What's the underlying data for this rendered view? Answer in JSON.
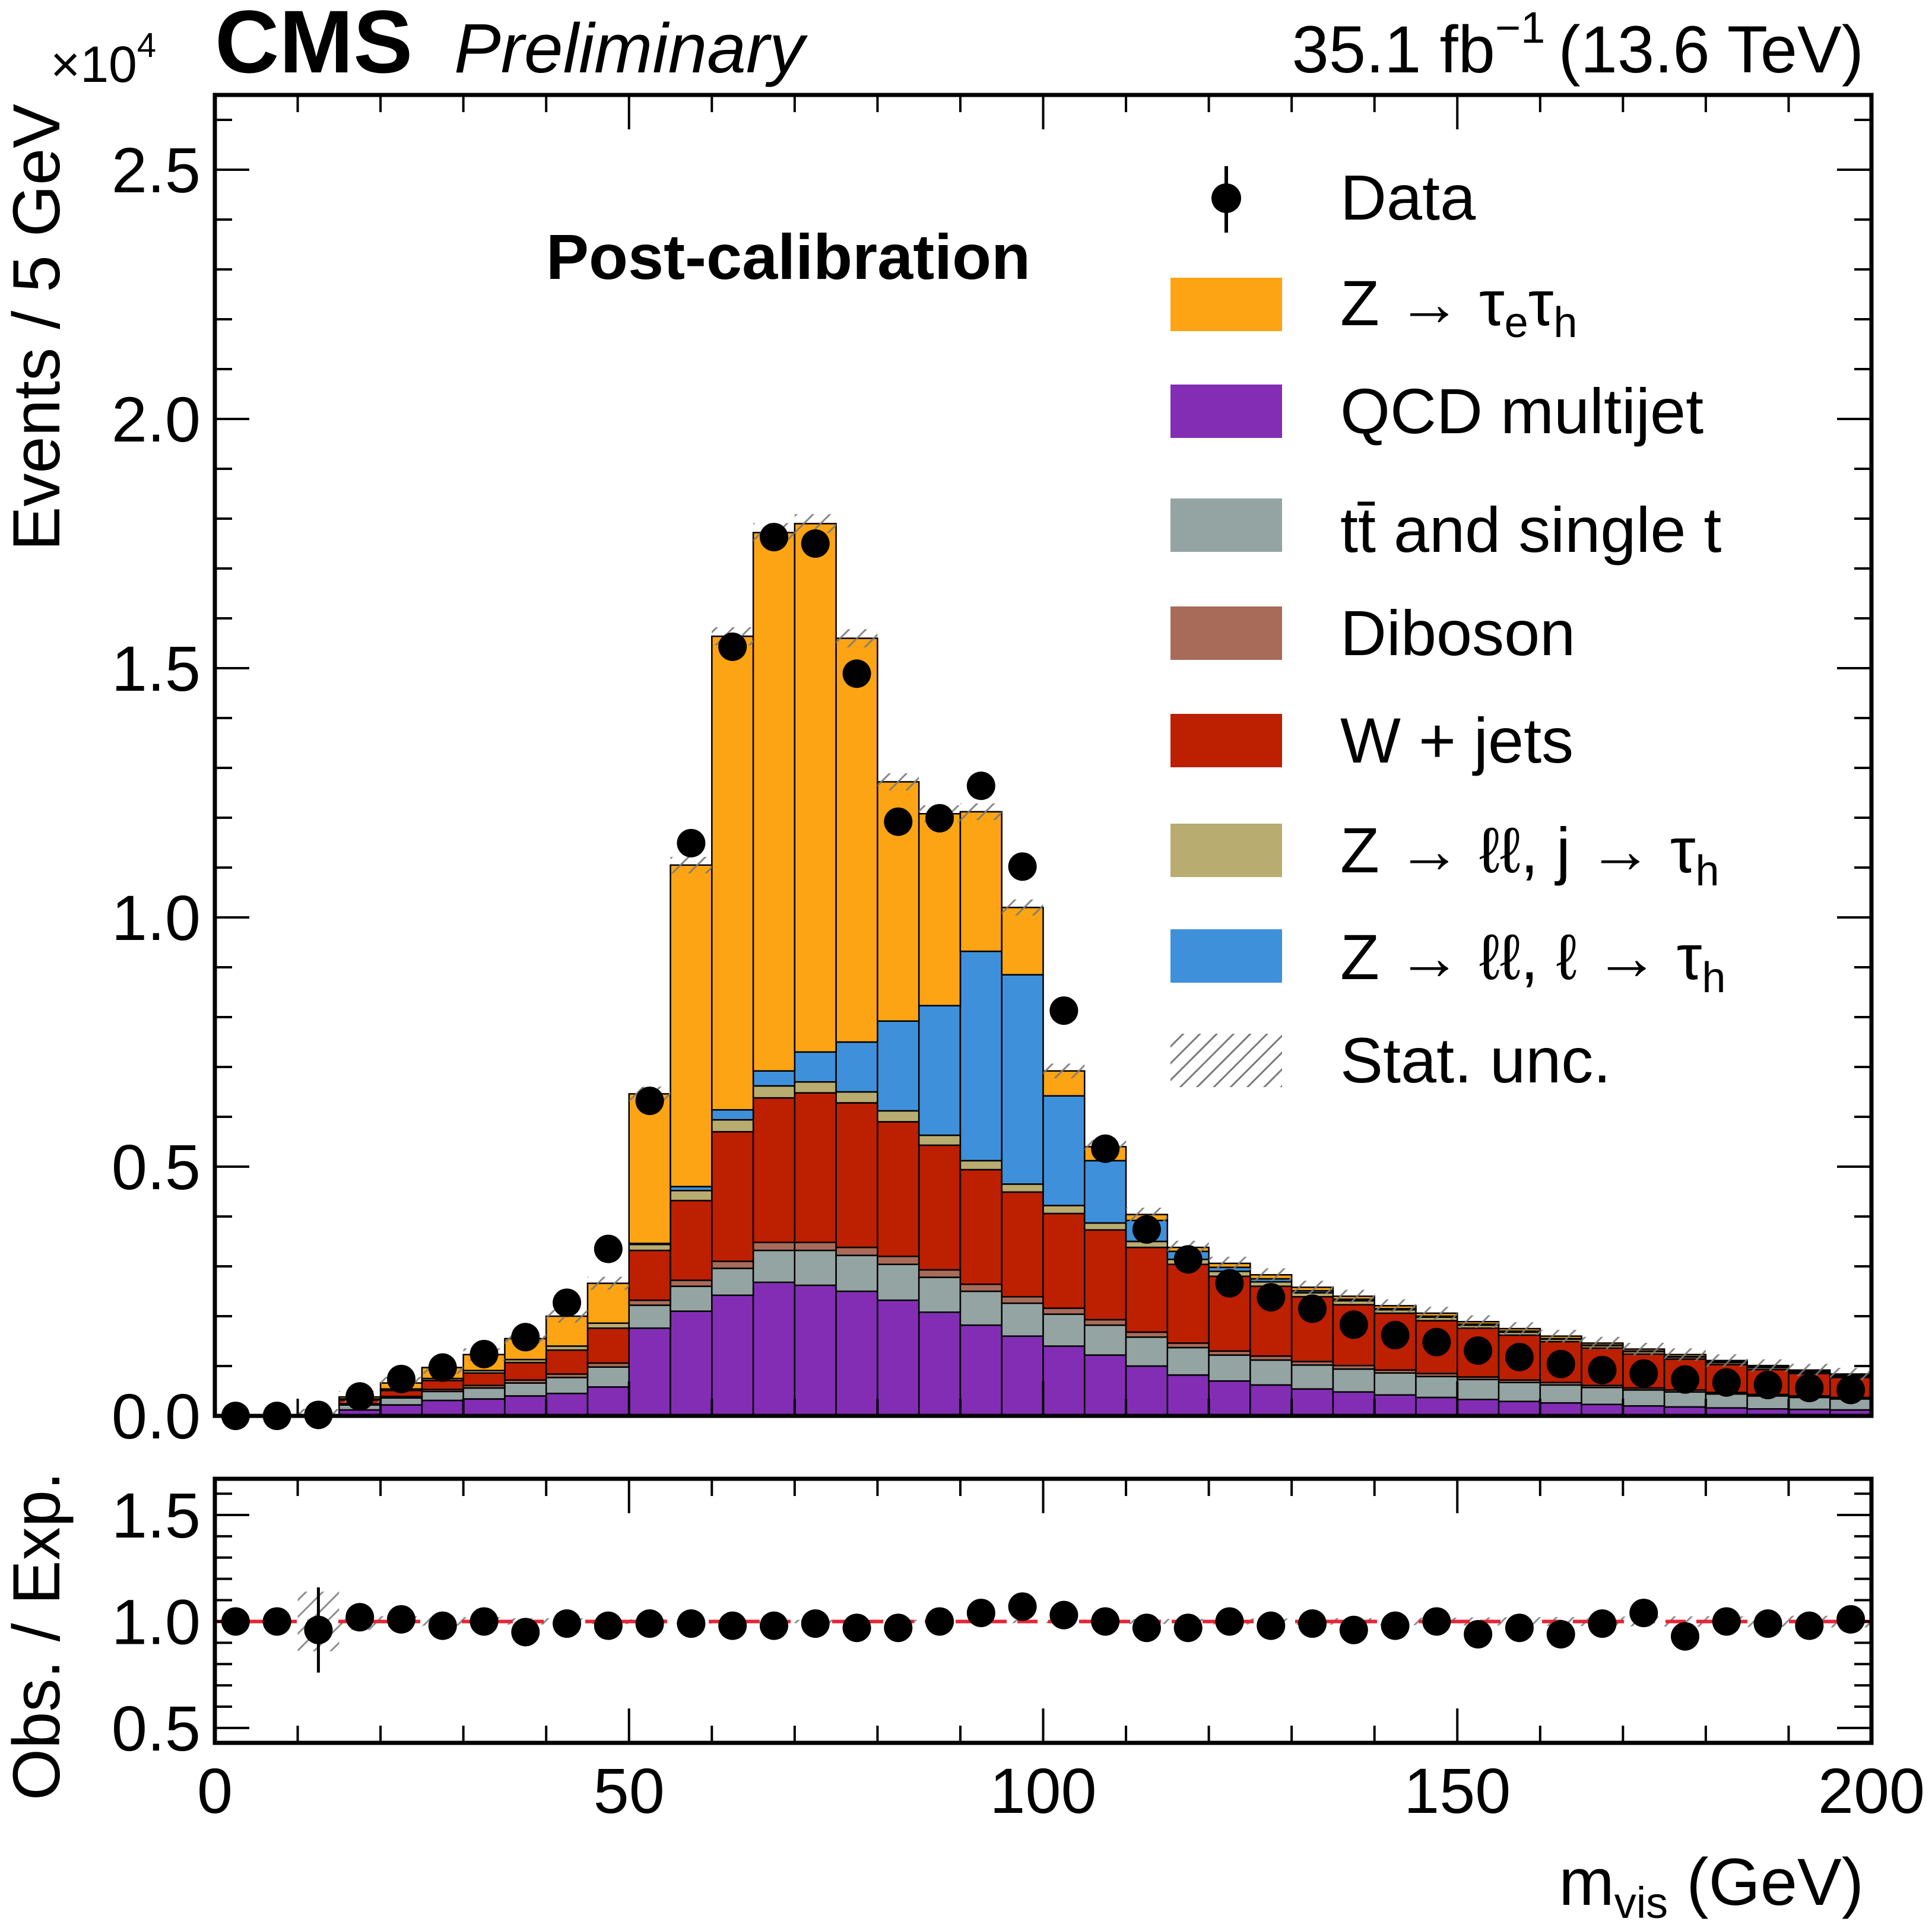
{
  "header": {
    "experiment": "CMS",
    "status": "Preliminary",
    "lumi_value": "35.1 fb",
    "lumi_exp": "−1",
    "energy": "(13.6 TeV)"
  },
  "annotation": "Post-calibration",
  "axes": {
    "top_ylabel": "Events / 5 GeV",
    "top_multiplier_base": "×10",
    "top_multiplier_exp": "4",
    "bottom_ylabel": "Obs. / Exp.",
    "xlabel_main": "m",
    "xlabel_sub": "vis",
    "xlabel_unit": " (GeV)"
  },
  "legend": {
    "data": "Data",
    "ztt": [
      "Z ",
      " → τ",
      "e",
      "τ",
      "h"
    ],
    "qcd": "QCD multijet",
    "ttbar": [
      "t",
      "t̄",
      " and single t"
    ],
    "diboson": "Diboson",
    "wjets": "W  +  jets",
    "zll_j": [
      "Z → ℓℓ, j → τ",
      "h"
    ],
    "zll_l": [
      "Z  → ℓℓ, ℓ → τ",
      "h"
    ],
    "stat": "Stat.  unc."
  },
  "colors": {
    "ztt": "#fca414",
    "qcd": "#832db5",
    "ttbar": "#94a4a2",
    "diboson": "#a96b59",
    "wjets": "#bd1f01",
    "zll_j": "#b9ac70",
    "zll_l": "#3f90da",
    "ratio_line": "#e42536"
  },
  "chart_data": {
    "type": "bar",
    "xlim": [
      0,
      200
    ],
    "ylim_top": [
      0,
      2.65
    ],
    "ylim_ratio": [
      0.43,
      1.67
    ],
    "x_ticks": [
      "0",
      "50",
      "100",
      "150",
      "200"
    ],
    "y_ticks_top": [
      "0.0",
      "0.5",
      "1.0",
      "1.5",
      "2.0",
      "2.5"
    ],
    "y_ticks_ratio": [
      "0.5",
      "1.0",
      "1.5"
    ],
    "bin_edges": [
      0,
      5,
      10,
      15,
      20,
      25,
      30,
      35,
      40,
      45,
      50,
      55,
      60,
      65,
      70,
      75,
      80,
      85,
      90,
      95,
      100,
      105,
      110,
      115,
      120,
      125,
      130,
      135,
      140,
      145,
      150,
      155,
      160,
      165,
      170,
      175,
      180,
      185,
      190,
      195,
      200
    ],
    "stack_order": [
      "qcd",
      "ttbar",
      "diboson",
      "wjets",
      "zll_j",
      "zll_l",
      "ztt"
    ],
    "series": [
      {
        "key": "qcd",
        "name": "QCD multijet",
        "values": [
          0,
          0,
          0,
          0.012,
          0.022,
          0.031,
          0.034,
          0.04,
          0.045,
          0.058,
          0.176,
          0.21,
          0.242,
          0.268,
          0.262,
          0.25,
          0.232,
          0.208,
          0.182,
          0.16,
          0.14,
          0.122,
          0.1,
          0.082,
          0.07,
          0.062,
          0.054,
          0.048,
          0.042,
          0.037,
          0.033,
          0.029,
          0.026,
          0.023,
          0.02,
          0.018,
          0.016,
          0.014,
          0.013,
          0.012
        ]
      },
      {
        "key": "ttbar",
        "name": "tt̄ and single t",
        "values": [
          0,
          0,
          0,
          0.01,
          0.014,
          0.018,
          0.022,
          0.026,
          0.032,
          0.04,
          0.046,
          0.05,
          0.054,
          0.064,
          0.07,
          0.072,
          0.072,
          0.07,
          0.068,
          0.066,
          0.064,
          0.06,
          0.058,
          0.055,
          0.052,
          0.05,
          0.048,
          0.046,
          0.044,
          0.042,
          0.04,
          0.038,
          0.036,
          0.034,
          0.032,
          0.03,
          0.028,
          0.026,
          0.024,
          0.022
        ]
      },
      {
        "key": "diboson",
        "name": "Diboson",
        "values": [
          0,
          0,
          0,
          0.002,
          0.003,
          0.004,
          0.005,
          0.006,
          0.007,
          0.008,
          0.01,
          0.012,
          0.014,
          0.016,
          0.016,
          0.016,
          0.016,
          0.015,
          0.014,
          0.013,
          0.012,
          0.011,
          0.01,
          0.009,
          0.008,
          0.008,
          0.007,
          0.007,
          0.006,
          0.006,
          0.005,
          0.005,
          0.005,
          0.004,
          0.004,
          0.004,
          0.003,
          0.003,
          0.003,
          0.003
        ]
      },
      {
        "key": "wjets",
        "name": "W + jets",
        "values": [
          0,
          0,
          0,
          0.008,
          0.012,
          0.018,
          0.025,
          0.035,
          0.048,
          0.07,
          0.1,
          0.16,
          0.26,
          0.29,
          0.3,
          0.29,
          0.27,
          0.25,
          0.23,
          0.21,
          0.19,
          0.18,
          0.17,
          0.158,
          0.15,
          0.14,
          0.13,
          0.122,
          0.114,
          0.106,
          0.098,
          0.09,
          0.082,
          0.075,
          0.068,
          0.062,
          0.056,
          0.05,
          0.045,
          0.04
        ]
      },
      {
        "key": "zll_j",
        "name": "Z → ℓℓ, j → τh",
        "values": [
          0,
          0,
          0,
          0.002,
          0.003,
          0.004,
          0.005,
          0.006,
          0.008,
          0.01,
          0.012,
          0.02,
          0.024,
          0.024,
          0.022,
          0.022,
          0.022,
          0.02,
          0.018,
          0.016,
          0.016,
          0.014,
          0.012,
          0.01,
          0.01,
          0.009,
          0.008,
          0.008,
          0.007,
          0.007,
          0.006,
          0.006,
          0.005,
          0.005,
          0.005,
          0.004,
          0.004,
          0.004,
          0.003,
          0.003
        ]
      },
      {
        "key": "zll_l",
        "name": "Z → ℓℓ, ℓ → τh",
        "values": [
          0,
          0,
          0,
          0,
          0,
          0,
          0,
          0,
          0,
          0,
          0.002,
          0.008,
          0.02,
          0.03,
          0.06,
          0.1,
          0.18,
          0.26,
          0.42,
          0.42,
          0.22,
          0.125,
          0.042,
          0.016,
          0.008,
          0.006,
          0.004,
          0.003,
          0.002,
          0.002,
          0.002,
          0.002,
          0.001,
          0.001,
          0.001,
          0.001,
          0.001,
          0.001,
          0.001,
          0.001
        ]
      },
      {
        "key": "ztt",
        "name": "Z → τeτh",
        "values": [
          0,
          0,
          0.002,
          0.004,
          0.012,
          0.022,
          0.032,
          0.042,
          0.06,
          0.08,
          0.3,
          0.645,
          0.95,
          1.08,
          1.06,
          0.81,
          0.48,
          0.385,
          0.28,
          0.135,
          0.05,
          0.028,
          0.012,
          0.008,
          0.008,
          0.008,
          0.007,
          0.006,
          0.006,
          0.006,
          0.005,
          0.005,
          0.005,
          0.004,
          0.004,
          0.004,
          0.003,
          0.003,
          0.003,
          0.003
        ]
      }
    ],
    "data_points": {
      "name": "Data",
      "x": [
        2.5,
        7.5,
        12.5,
        17.5,
        22.5,
        27.5,
        32.5,
        37.5,
        42.5,
        47.5,
        52.5,
        57.5,
        62.5,
        67.5,
        72.5,
        77.5,
        82.5,
        87.5,
        92.5,
        97.5,
        102.5,
        107.5,
        112.5,
        117.5,
        122.5,
        127.5,
        132.5,
        137.5,
        142.5,
        147.5,
        152.5,
        157.5,
        162.5,
        167.5,
        172.5,
        177.5,
        182.5,
        187.5,
        192.5,
        197.5
      ],
      "y": [
        0,
        0,
        0.002,
        0.039,
        0.074,
        0.097,
        0.124,
        0.158,
        0.227,
        0.335,
        0.632,
        1.149,
        1.543,
        1.763,
        1.75,
        1.489,
        1.192,
        1.199,
        1.264,
        1.102,
        0.813,
        0.536,
        0.374,
        0.314,
        0.266,
        0.238,
        0.215,
        0.183,
        0.162,
        0.148,
        0.131,
        0.118,
        0.104,
        0.092,
        0.085,
        0.073,
        0.067,
        0.062,
        0.056,
        0.052
      ],
      "yerr": [
        0,
        0,
        0.001,
        0.002,
        0.003,
        0.003,
        0.004,
        0.004,
        0.005,
        0.006,
        0.008,
        0.011,
        0.012,
        0.013,
        0.013,
        0.012,
        0.011,
        0.011,
        0.011,
        0.01,
        0.009,
        0.007,
        0.006,
        0.006,
        0.005,
        0.005,
        0.005,
        0.004,
        0.004,
        0.004,
        0.004,
        0.003,
        0.003,
        0.003,
        0.003,
        0.003,
        0.003,
        0.002,
        0.002,
        0.002
      ]
    },
    "ratio_points": {
      "x": [
        2.5,
        7.5,
        12.5,
        17.5,
        22.5,
        27.5,
        32.5,
        37.5,
        42.5,
        47.5,
        52.5,
        57.5,
        62.5,
        67.5,
        72.5,
        77.5,
        82.5,
        87.5,
        92.5,
        97.5,
        102.5,
        107.5,
        112.5,
        117.5,
        122.5,
        127.5,
        132.5,
        137.5,
        142.5,
        147.5,
        152.5,
        157.5,
        162.5,
        167.5,
        172.5,
        177.5,
        182.5,
        187.5,
        192.5,
        197.5
      ],
      "y": [
        1.0,
        1.0,
        0.96,
        1.02,
        1.01,
        0.98,
        1.0,
        0.95,
        0.99,
        0.98,
        0.99,
        0.99,
        0.98,
        0.98,
        0.99,
        0.97,
        0.97,
        1.0,
        1.04,
        1.07,
        1.03,
        1.0,
        0.97,
        0.97,
        1.0,
        0.98,
        0.99,
        0.96,
        0.98,
        1.0,
        0.94,
        0.97,
        0.94,
        0.99,
        1.04,
        0.93,
        1.0,
        0.99,
        0.98,
        1.01
      ],
      "yerr": [
        0,
        0,
        0.2,
        0.02,
        0.02,
        0.02,
        0.02,
        0.02,
        0.02,
        0.02,
        0.01,
        0.01,
        0.01,
        0.01,
        0.01,
        0.01,
        0.01,
        0.01,
        0.01,
        0.01,
        0.01,
        0.01,
        0.01,
        0.01,
        0.01,
        0.01,
        0.01,
        0.01,
        0.01,
        0.01,
        0.01,
        0.01,
        0.01,
        0.01,
        0.01,
        0.01,
        0.01,
        0.01,
        0.01,
        0.01
      ],
      "stat_band": [
        0,
        0,
        0.14,
        0.04,
        0.025,
        0.02,
        0.02,
        0.015,
        0.015,
        0.012,
        0.01,
        0.01,
        0.008,
        0.008,
        0.008,
        0.008,
        0.008,
        0.008,
        0.008,
        0.008,
        0.008,
        0.01,
        0.012,
        0.012,
        0.014,
        0.014,
        0.015,
        0.016,
        0.017,
        0.018,
        0.019,
        0.02,
        0.021,
        0.022,
        0.023,
        0.024,
        0.025,
        0.026,
        0.027,
        0.028
      ]
    }
  }
}
